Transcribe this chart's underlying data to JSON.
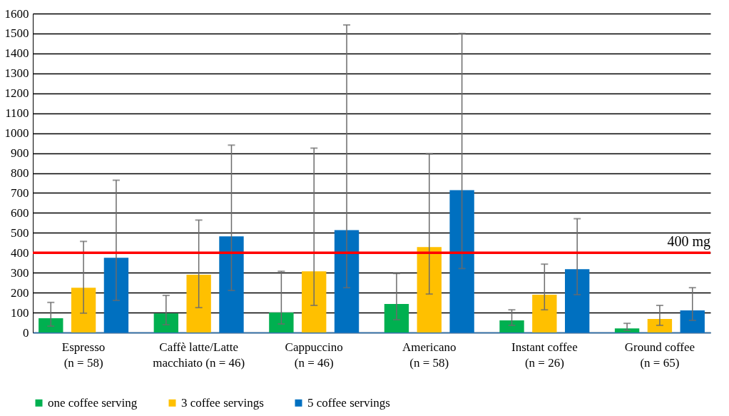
{
  "chart_data": {
    "type": "bar",
    "categories": [
      "Espresso\n(n = 58)",
      "Caffè latte/Latte\nmacchiato (n = 46)",
      "Cappuccino\n(n = 46)",
      "Americano\n(n = 58)",
      "Instant coffee\n(n = 26)",
      "Ground coffee\n(n = 65)"
    ],
    "series": [
      {
        "name": "one coffee serving",
        "color": "#00b050",
        "values": [
          72,
          96,
          100,
          143,
          61,
          21
        ],
        "errors": [
          [
            32,
            151
          ],
          [
            39,
            186
          ],
          [
            43,
            307
          ],
          [
            64,
            296
          ],
          [
            36,
            114
          ],
          [
            11,
            46
          ]
        ]
      },
      {
        "name": "3 coffee servings",
        "color": "#ffc000",
        "values": [
          225,
          290,
          307,
          429,
          190,
          68
        ],
        "errors": [
          [
            97,
            457
          ],
          [
            125,
            564
          ],
          [
            136,
            925
          ],
          [
            193,
            896
          ],
          [
            114,
            343
          ],
          [
            36,
            136
          ]
        ]
      },
      {
        "name": "5 coffee servings",
        "color": "#0070c0",
        "values": [
          375,
          482,
          514,
          714,
          318,
          111
        ],
        "errors": [
          [
            161,
            764
          ],
          [
            211,
            940
          ],
          [
            225,
            1543
          ],
          [
            321,
            1500
          ],
          [
            190,
            571
          ],
          [
            61,
            225
          ]
        ]
      }
    ],
    "ylim": [
      0,
      1600
    ],
    "yticks": [
      0,
      100,
      200,
      300,
      400,
      500,
      600,
      700,
      800,
      900,
      1000,
      1100,
      1200,
      1300,
      1400,
      1500,
      1600
    ],
    "ref_lines": [
      {
        "axis": "y",
        "value": 400,
        "label": "400 mg",
        "color": "#ff0000"
      }
    ],
    "grid": "y",
    "legend": "bottom"
  }
}
